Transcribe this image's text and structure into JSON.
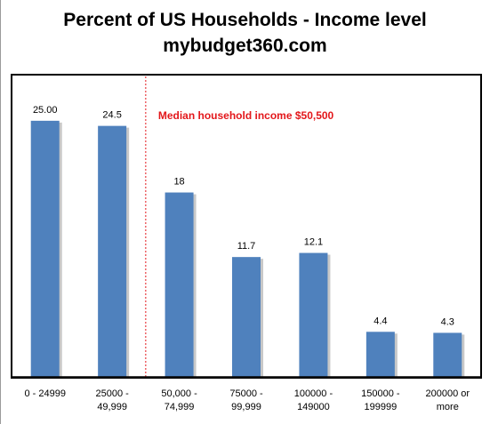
{
  "chart_data": {
    "type": "bar",
    "title": "Percent of US Households - Income level",
    "subtitle": "mybudget360.com",
    "categories": [
      [
        "0 - 24999"
      ],
      [
        "25000 -",
        "49,999"
      ],
      [
        "50,000 -",
        "74,999"
      ],
      [
        "75000 -",
        "99,999"
      ],
      [
        "100000 -",
        "149000"
      ],
      [
        "150000 -",
        "199999"
      ],
      [
        "200000 or",
        "more"
      ]
    ],
    "values": [
      25.0,
      24.5,
      18,
      11.7,
      12.1,
      4.4,
      4.3
    ],
    "data_labels": [
      "25.00",
      "24.5",
      "18",
      "11.7",
      "12.1",
      "4.4",
      "4.3"
    ],
    "ylim": [
      0,
      29.5
    ],
    "grid": false,
    "annotation": {
      "text": "Median household income $50,500",
      "x_position_between_categories": [
        1,
        2
      ],
      "style": "dotted-vertical-line"
    },
    "colors": {
      "bar": "#4f81bd",
      "bar_shadow": "#c8c8c8",
      "median": "#e3171b",
      "axis": "#000000"
    }
  }
}
